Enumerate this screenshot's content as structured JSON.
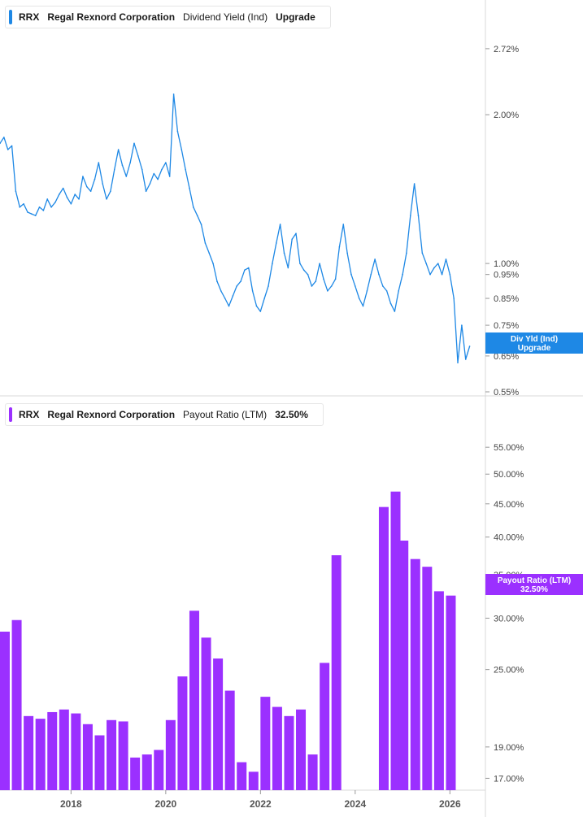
{
  "panels": [
    {
      "legend": {
        "ticker": "RRX",
        "company": "Regal Rexnord Corporation",
        "metric": "Dividend Yield (Ind)",
        "value": "Upgrade",
        "color": "#1e88e5"
      },
      "badge": {
        "line1": "Div Yld (Ind)",
        "line2": "Upgrade",
        "color": "#1e88e5"
      }
    },
    {
      "legend": {
        "ticker": "RRX",
        "company": "Regal Rexnord Corporation",
        "metric": "Payout Ratio (LTM)",
        "value": "32.50%",
        "color": "#9b30ff"
      },
      "badge": {
        "line1": "Payout Ratio (LTM)",
        "line2": "32.50%",
        "color": "#9b30ff"
      }
    }
  ],
  "chart_data": [
    {
      "type": "line",
      "title": "Dividend Yield (Ind)",
      "y_scale": "log",
      "ylim": [
        0.55,
        3.0
      ],
      "y_ticks": [
        "2.72%",
        "2.00%",
        "1.00%",
        "0.95%",
        "0.85%",
        "0.75%",
        "0.65%",
        "0.55%"
      ],
      "y_tick_values": [
        2.72,
        2.0,
        1.0,
        0.95,
        0.85,
        0.75,
        0.65,
        0.55
      ],
      "x_ticks": [
        "2018",
        "2020",
        "2022",
        "2024",
        "2026"
      ],
      "xlim": [
        "2016-06",
        "2026-09"
      ],
      "series": [
        {
          "values": [
            {
              "x": "2016-07",
              "y": 1.75
            },
            {
              "x": "2016-08",
              "y": 1.8
            },
            {
              "x": "2016-09",
              "y": 1.7
            },
            {
              "x": "2016-10",
              "y": 1.73
            },
            {
              "x": "2016-11",
              "y": 1.4
            },
            {
              "x": "2016-12",
              "y": 1.3
            },
            {
              "x": "2017-01",
              "y": 1.32
            },
            {
              "x": "2017-02",
              "y": 1.27
            },
            {
              "x": "2017-03",
              "y": 1.26
            },
            {
              "x": "2017-04",
              "y": 1.25
            },
            {
              "x": "2017-05",
              "y": 1.3
            },
            {
              "x": "2017-06",
              "y": 1.28
            },
            {
              "x": "2017-07",
              "y": 1.35
            },
            {
              "x": "2017-08",
              "y": 1.3
            },
            {
              "x": "2017-09",
              "y": 1.33
            },
            {
              "x": "2017-10",
              "y": 1.38
            },
            {
              "x": "2017-11",
              "y": 1.42
            },
            {
              "x": "2017-12",
              "y": 1.36
            },
            {
              "x": "2018-01",
              "y": 1.32
            },
            {
              "x": "2018-02",
              "y": 1.38
            },
            {
              "x": "2018-03",
              "y": 1.35
            },
            {
              "x": "2018-04",
              "y": 1.5
            },
            {
              "x": "2018-05",
              "y": 1.43
            },
            {
              "x": "2018-06",
              "y": 1.4
            },
            {
              "x": "2018-07",
              "y": 1.48
            },
            {
              "x": "2018-08",
              "y": 1.6
            },
            {
              "x": "2018-09",
              "y": 1.45
            },
            {
              "x": "2018-10",
              "y": 1.35
            },
            {
              "x": "2018-11",
              "y": 1.4
            },
            {
              "x": "2018-12",
              "y": 1.55
            },
            {
              "x": "2019-01",
              "y": 1.7
            },
            {
              "x": "2019-02",
              "y": 1.58
            },
            {
              "x": "2019-03",
              "y": 1.5
            },
            {
              "x": "2019-04",
              "y": 1.6
            },
            {
              "x": "2019-05",
              "y": 1.75
            },
            {
              "x": "2019-06",
              "y": 1.65
            },
            {
              "x": "2019-07",
              "y": 1.55
            },
            {
              "x": "2019-08",
              "y": 1.4
            },
            {
              "x": "2019-09",
              "y": 1.45
            },
            {
              "x": "2019-10",
              "y": 1.52
            },
            {
              "x": "2019-11",
              "y": 1.48
            },
            {
              "x": "2019-12",
              "y": 1.55
            },
            {
              "x": "2020-01",
              "y": 1.6
            },
            {
              "x": "2020-02",
              "y": 1.5
            },
            {
              "x": "2020-03",
              "y": 2.2
            },
            {
              "x": "2020-04",
              "y": 1.85
            },
            {
              "x": "2020-05",
              "y": 1.7
            },
            {
              "x": "2020-06",
              "y": 1.55
            },
            {
              "x": "2020-07",
              "y": 1.42
            },
            {
              "x": "2020-08",
              "y": 1.3
            },
            {
              "x": "2020-09",
              "y": 1.25
            },
            {
              "x": "2020-10",
              "y": 1.2
            },
            {
              "x": "2020-11",
              "y": 1.1
            },
            {
              "x": "2020-12",
              "y": 1.05
            },
            {
              "x": "2021-01",
              "y": 1.0
            },
            {
              "x": "2021-02",
              "y": 0.92
            },
            {
              "x": "2021-03",
              "y": 0.88
            },
            {
              "x": "2021-04",
              "y": 0.85
            },
            {
              "x": "2021-05",
              "y": 0.82
            },
            {
              "x": "2021-06",
              "y": 0.86
            },
            {
              "x": "2021-07",
              "y": 0.9
            },
            {
              "x": "2021-08",
              "y": 0.92
            },
            {
              "x": "2021-09",
              "y": 0.97
            },
            {
              "x": "2021-10",
              "y": 0.98
            },
            {
              "x": "2021-11",
              "y": 0.88
            },
            {
              "x": "2021-12",
              "y": 0.82
            },
            {
              "x": "2022-01",
              "y": 0.8
            },
            {
              "x": "2022-02",
              "y": 0.85
            },
            {
              "x": "2022-03",
              "y": 0.9
            },
            {
              "x": "2022-04",
              "y": 1.0
            },
            {
              "x": "2022-05",
              "y": 1.1
            },
            {
              "x": "2022-06",
              "y": 1.2
            },
            {
              "x": "2022-07",
              "y": 1.05
            },
            {
              "x": "2022-08",
              "y": 0.98
            },
            {
              "x": "2022-09",
              "y": 1.12
            },
            {
              "x": "2022-10",
              "y": 1.15
            },
            {
              "x": "2022-11",
              "y": 1.0
            },
            {
              "x": "2022-12",
              "y": 0.97
            },
            {
              "x": "2023-01",
              "y": 0.95
            },
            {
              "x": "2023-02",
              "y": 0.9
            },
            {
              "x": "2023-03",
              "y": 0.92
            },
            {
              "x": "2023-04",
              "y": 1.0
            },
            {
              "x": "2023-05",
              "y": 0.93
            },
            {
              "x": "2023-06",
              "y": 0.88
            },
            {
              "x": "2023-07",
              "y": 0.9
            },
            {
              "x": "2023-08",
              "y": 0.93
            },
            {
              "x": "2023-09",
              "y": 1.08
            },
            {
              "x": "2023-10",
              "y": 1.2
            },
            {
              "x": "2023-11",
              "y": 1.05
            },
            {
              "x": "2023-12",
              "y": 0.95
            },
            {
              "x": "2024-01",
              "y": 0.9
            },
            {
              "x": "2024-02",
              "y": 0.85
            },
            {
              "x": "2024-03",
              "y": 0.82
            },
            {
              "x": "2024-04",
              "y": 0.88
            },
            {
              "x": "2024-05",
              "y": 0.95
            },
            {
              "x": "2024-06",
              "y": 1.02
            },
            {
              "x": "2024-07",
              "y": 0.95
            },
            {
              "x": "2024-08",
              "y": 0.9
            },
            {
              "x": "2024-09",
              "y": 0.88
            },
            {
              "x": "2024-10",
              "y": 0.83
            },
            {
              "x": "2024-11",
              "y": 0.8
            },
            {
              "x": "2024-12",
              "y": 0.88
            },
            {
              "x": "2025-01",
              "y": 0.95
            },
            {
              "x": "2025-02",
              "y": 1.05
            },
            {
              "x": "2025-03",
              "y": 1.25
            },
            {
              "x": "2025-04",
              "y": 1.45
            },
            {
              "x": "2025-05",
              "y": 1.25
            },
            {
              "x": "2025-06",
              "y": 1.05
            },
            {
              "x": "2025-07",
              "y": 1.0
            },
            {
              "x": "2025-08",
              "y": 0.95
            },
            {
              "x": "2025-09",
              "y": 0.98
            },
            {
              "x": "2025-10",
              "y": 1.0
            },
            {
              "x": "2025-11",
              "y": 0.95
            },
            {
              "x": "2025-12",
              "y": 1.02
            },
            {
              "x": "2026-01",
              "y": 0.95
            },
            {
              "x": "2026-02",
              "y": 0.85
            },
            {
              "x": "2026-03",
              "y": 0.63
            },
            {
              "x": "2026-04",
              "y": 0.75
            },
            {
              "x": "2026-05",
              "y": 0.64
            },
            {
              "x": "2026-06",
              "y": 0.68
            }
          ]
        }
      ]
    },
    {
      "type": "bar",
      "title": "Payout Ratio (LTM)",
      "y_scale": "log",
      "ylim": [
        16.3,
        60
      ],
      "y_ticks": [
        "55.00%",
        "50.00%",
        "45.00%",
        "40.00%",
        "35.00%",
        "30.00%",
        "25.00%",
        "19.00%",
        "17.00%"
      ],
      "y_tick_values": [
        55,
        50,
        45,
        40,
        35,
        30,
        25,
        19,
        17
      ],
      "x_ticks": [
        "2018",
        "2020",
        "2022",
        "2024",
        "2026"
      ],
      "xlim": [
        "2016-06",
        "2026-09"
      ],
      "series": [
        {
          "name": "Payout Ratio (LTM)",
          "values": [
            {
              "x": "2016-07",
              "y": 28.6
            },
            {
              "x": "2016-10",
              "y": 29.8
            },
            {
              "x": "2017-01",
              "y": 21.2
            },
            {
              "x": "2017-04",
              "y": 21.0
            },
            {
              "x": "2017-07",
              "y": 21.5
            },
            {
              "x": "2017-10",
              "y": 21.7
            },
            {
              "x": "2018-01",
              "y": 21.4
            },
            {
              "x": "2018-04",
              "y": 20.6
            },
            {
              "x": "2018-07",
              "y": 19.8
            },
            {
              "x": "2018-10",
              "y": 20.9
            },
            {
              "x": "2019-01",
              "y": 20.8
            },
            {
              "x": "2019-04",
              "y": 18.3
            },
            {
              "x": "2019-07",
              "y": 18.5
            },
            {
              "x": "2019-10",
              "y": 18.8
            },
            {
              "x": "2020-01",
              "y": 20.9
            },
            {
              "x": "2020-04",
              "y": 24.4
            },
            {
              "x": "2020-07",
              "y": 30.8
            },
            {
              "x": "2020-10",
              "y": 28.0
            },
            {
              "x": "2021-01",
              "y": 26.0
            },
            {
              "x": "2021-04",
              "y": 23.2
            },
            {
              "x": "2021-07",
              "y": 18.0
            },
            {
              "x": "2021-10",
              "y": 17.4
            },
            {
              "x": "2022-01",
              "y": 22.7
            },
            {
              "x": "2022-04",
              "y": 21.9
            },
            {
              "x": "2022-07",
              "y": 21.2
            },
            {
              "x": "2022-10",
              "y": 21.7
            },
            {
              "x": "2023-01",
              "y": 18.5
            },
            {
              "x": "2023-04",
              "y": 25.6
            },
            {
              "x": "2023-07",
              "y": 37.5
            },
            {
              "x": "2023-10",
              "y": null
            },
            {
              "x": "2024-01",
              "y": null
            },
            {
              "x": "2024-04",
              "y": null
            },
            {
              "x": "2024-07",
              "y": 44.5
            },
            {
              "x": "2024-10",
              "y": 47.0
            },
            {
              "x": "2024-12",
              "y": 39.5
            },
            {
              "x": "2025-03",
              "y": 37.0
            },
            {
              "x": "2025-06",
              "y": 36.0
            },
            {
              "x": "2025-09",
              "y": 33.0
            },
            {
              "x": "2025-12",
              "y": 32.5
            }
          ]
        }
      ]
    }
  ]
}
